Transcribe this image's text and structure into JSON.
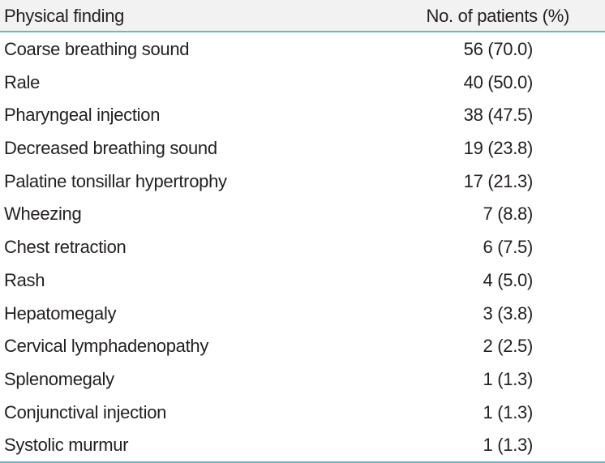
{
  "table": {
    "header": {
      "finding": "Physical finding",
      "count": "No. of patients (%)"
    },
    "rows": [
      {
        "finding": "Coarse breathing sound",
        "count": "56 (70.0)"
      },
      {
        "finding": "Rale",
        "count": "40 (50.0)"
      },
      {
        "finding": "Pharyngeal injection",
        "count": "38 (47.5)"
      },
      {
        "finding": "Decreased breathing sound",
        "count": "19 (23.8)"
      },
      {
        "finding": "Palatine tonsillar hypertrophy",
        "count": "17 (21.3)"
      },
      {
        "finding": "Wheezing",
        "count": "7 (8.8)"
      },
      {
        "finding": "Chest retraction",
        "count": "6 (7.5)"
      },
      {
        "finding": "Rash",
        "count": "4 (5.0)"
      },
      {
        "finding": "Hepatomegaly",
        "count": "3 (3.8)"
      },
      {
        "finding": "Cervical lymphadenopathy",
        "count": "2 (2.5)"
      },
      {
        "finding": "Splenomegaly",
        "count": "1 (1.3)"
      },
      {
        "finding": "Conjunctival injection",
        "count": "1 (1.3)"
      },
      {
        "finding": "Systolic murmur",
        "count": "1 (1.3)"
      }
    ]
  },
  "colors": {
    "header_background": "#f2f2f2",
    "rule": "#5bbcc6",
    "text": "#231f20"
  }
}
